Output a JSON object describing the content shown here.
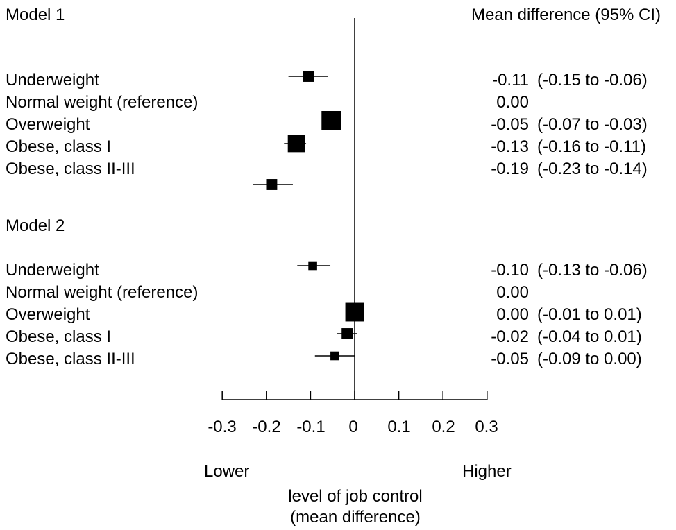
{
  "header": {
    "model1_title": "Model 1",
    "estimate_header": "Mean difference (95% CI)",
    "model2_title": "Model 2"
  },
  "models": [
    {
      "title": "Model 1",
      "rows": [
        {
          "label": "Underweight",
          "estimate_text": "-0.11",
          "ci_text": "(-0.15 to -0.06)"
        },
        {
          "label": "Normal weight (reference)",
          "estimate_text": "0.00",
          "ci_text": ""
        },
        {
          "label": "Overweight",
          "estimate_text": "-0.05",
          "ci_text": "(-0.07 to -0.03)"
        },
        {
          "label": "Obese, class I",
          "estimate_text": "-0.13",
          "ci_text": "(-0.16 to -0.11)"
        },
        {
          "label": "Obese, class II-III",
          "estimate_text": "-0.19",
          "ci_text": "(-0.23 to -0.14)"
        }
      ]
    },
    {
      "title": "Model 2",
      "rows": [
        {
          "label": "Underweight",
          "estimate_text": "-0.10",
          "ci_text": "(-0.13 to -0.06)"
        },
        {
          "label": "Normal weight (reference)",
          "estimate_text": "0.00",
          "ci_text": ""
        },
        {
          "label": "Overweight",
          "estimate_text": "0.00",
          "ci_text": "(-0.01 to 0.01)"
        },
        {
          "label": "Obese, class I",
          "estimate_text": "-0.02",
          "ci_text": "(-0.04 to 0.01)"
        },
        {
          "label": "Obese, class II-III",
          "estimate_text": "-0.05",
          "ci_text": "(-0.09 to 0.00)"
        }
      ]
    }
  ],
  "axis": {
    "tick_labels": [
      "-0.3",
      "-0.2",
      "-0.1",
      "0",
      "0.1",
      "0.2",
      "0.3"
    ],
    "lower_label": "Lower",
    "higher_label": "Higher",
    "title_line1": "level of job control",
    "title_line2": "(mean difference)"
  },
  "chart_data": {
    "type": "forest",
    "title": "",
    "xlabel": "level of job control (mean difference)",
    "xlim": [
      -0.3,
      0.3
    ],
    "xticks": [
      -0.3,
      -0.2,
      -0.1,
      0,
      0.1,
      0.2,
      0.3
    ],
    "reference_line": 0,
    "direction_labels": {
      "left": "Lower",
      "right": "Higher"
    },
    "series": [
      {
        "name": "Model 1",
        "points": [
          {
            "category": "Underweight",
            "estimate": -0.105,
            "lower": -0.15,
            "upper": -0.06,
            "relative_weight": 0.45
          },
          {
            "category": "Normal weight (reference)",
            "estimate": 0.0,
            "lower": 0.0,
            "upper": 0.0,
            "relative_weight": 0.0
          },
          {
            "category": "Overweight",
            "estimate": -0.053,
            "lower": -0.07,
            "upper": -0.03,
            "relative_weight": 1.0
          },
          {
            "category": "Obese, class I",
            "estimate": -0.132,
            "lower": -0.16,
            "upper": -0.11,
            "relative_weight": 0.85
          },
          {
            "category": "Obese, class II-III",
            "estimate": -0.188,
            "lower": -0.23,
            "upper": -0.14,
            "relative_weight": 0.45
          }
        ]
      },
      {
        "name": "Model 2",
        "points": [
          {
            "category": "Underweight",
            "estimate": -0.095,
            "lower": -0.13,
            "upper": -0.055,
            "relative_weight": 0.3
          },
          {
            "category": "Normal weight (reference)",
            "estimate": 0.0,
            "lower": 0.0,
            "upper": 0.0,
            "relative_weight": 0.0
          },
          {
            "category": "Overweight",
            "estimate": 0.0,
            "lower": -0.01,
            "upper": 0.01,
            "relative_weight": 0.95
          },
          {
            "category": "Obese, class I",
            "estimate": -0.017,
            "lower": -0.04,
            "upper": 0.005,
            "relative_weight": 0.45
          },
          {
            "category": "Obese, class II-III",
            "estimate": -0.045,
            "lower": -0.09,
            "upper": 0.0,
            "relative_weight": 0.3
          }
        ]
      }
    ]
  }
}
